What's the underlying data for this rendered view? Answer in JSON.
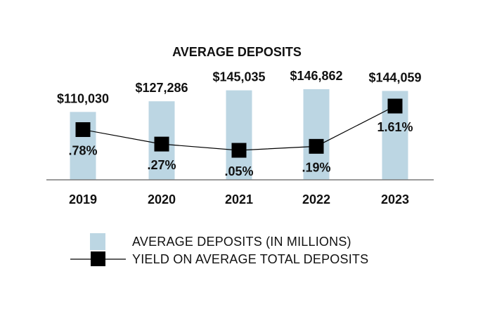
{
  "chart_data": {
    "type": "bar",
    "title": "AVERAGE DEPOSITS",
    "categories": [
      "2019",
      "2020",
      "2021",
      "2022",
      "2023"
    ],
    "series": [
      {
        "name": "AVERAGE DEPOSITS (IN MILLIONS)",
        "type": "bar",
        "values": [
          110030,
          127286,
          145035,
          146862,
          144059
        ],
        "labels": [
          "$110,030",
          "$127,286",
          "$145,035",
          "$146,862",
          "$144,059"
        ],
        "color": "#bcd6e3"
      },
      {
        "name": "YIELD ON AVERAGE TOTAL DEPOSITS",
        "type": "line",
        "values": [
          0.78,
          0.27,
          0.05,
          0.19,
          1.61
        ],
        "labels": [
          ".78%",
          ".27%",
          ".05%",
          ".19%",
          "1.61%"
        ],
        "color": "#000000"
      }
    ],
    "legend": {
      "position": "bottom"
    }
  }
}
